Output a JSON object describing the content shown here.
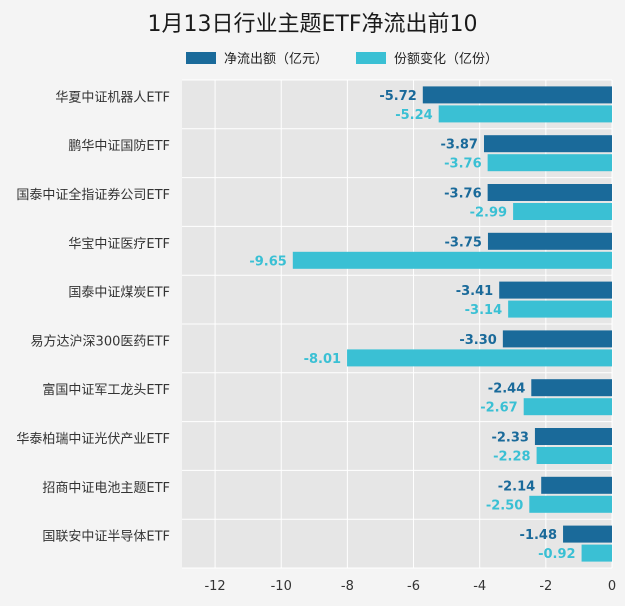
{
  "chart_data": {
    "type": "bar",
    "orientation": "horizontal",
    "title": "1月13日行业主题ETF净流出前10",
    "categories": [
      "华夏中证机器人ETF",
      "鹏华中证国防ETF",
      "国泰中证全指证券公司ETF",
      "华宝中证医疗ETF",
      "国泰中证煤炭ETF",
      "易方达沪深300医药ETF",
      "富国中证军工龙头ETF",
      "华泰柏瑞中证光伏产业ETF",
      "招商中证电池主题ETF",
      "国联安中证半导体ETF"
    ],
    "series": [
      {
        "name": "净流出额（亿元）",
        "color": "#1a6a9a",
        "values": [
          -5.72,
          -3.87,
          -3.76,
          -3.75,
          -3.41,
          -3.3,
          -2.44,
          -2.33,
          -2.14,
          -1.48
        ]
      },
      {
        "name": "份额变化（亿份）",
        "color": "#3ac0d4",
        "values": [
          -5.24,
          -3.76,
          -2.99,
          -9.65,
          -3.14,
          -8.01,
          -2.67,
          -2.28,
          -2.5,
          -0.92
        ]
      }
    ],
    "xlim": [
      -13,
      0
    ],
    "xticks": [
      -12,
      -10,
      -8,
      -6,
      -4,
      -2,
      0
    ],
    "legend_position": "top",
    "grid": true
  }
}
